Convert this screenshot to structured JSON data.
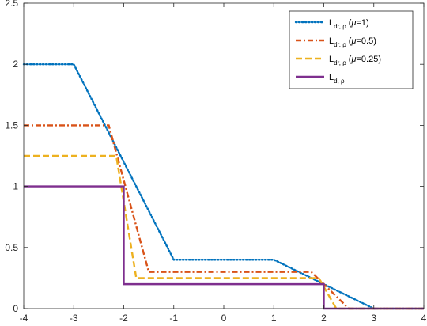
{
  "chart_data": {
    "type": "line",
    "title": "",
    "xlabel": "",
    "ylabel": "",
    "xlim": [
      -4,
      4
    ],
    "ylim": [
      0,
      2.5
    ],
    "grid": false,
    "legend_position": "top-right",
    "x_ticks": [
      "-4",
      "-3",
      "-2",
      "-1",
      "0",
      "1",
      "2",
      "3",
      "4"
    ],
    "y_ticks": [
      "0",
      "0.5",
      "1",
      "1.5",
      "2",
      "2.5"
    ],
    "series": [
      {
        "legend": {
          "main": "L",
          "sub": "dr, ρ",
          "param": "(μ=1)",
          "param_mu": "μ",
          "param_rest": "=1"
        },
        "color": "#0072BD",
        "style": "dotted",
        "x": [
          -4,
          -3,
          -1.0,
          1.0,
          3.0,
          4
        ],
        "y": [
          2,
          2,
          0.4,
          0.4,
          0,
          0
        ]
      },
      {
        "legend": {
          "main": "L",
          "sub": "dr, ρ",
          "param": "(μ=0.5)",
          "param_mu": "μ",
          "param_rest": "=0.5"
        },
        "color": "#D95319",
        "style": "dashdot",
        "x": [
          -4,
          -2.3,
          -1.5,
          1.75,
          2.5,
          4
        ],
        "y": [
          1.5,
          1.5,
          0.3,
          0.3,
          0,
          0
        ]
      },
      {
        "legend": {
          "main": "L",
          "sub": "dr, ρ",
          "param": "(μ=0.25)",
          "param_mu": "μ",
          "param_rest": "=0.25"
        },
        "color": "#EDB120",
        "style": "dashed",
        "x": [
          -4,
          -2.15,
          -1.75,
          1.9,
          2.25,
          4
        ],
        "y": [
          1.25,
          1.25,
          0.25,
          0.25,
          0,
          0
        ]
      },
      {
        "legend": {
          "main": "L",
          "sub": "d, ρ",
          "param": "",
          "param_mu": "",
          "param_rest": ""
        },
        "color": "#7E2F8E",
        "style": "solid",
        "x": [
          -4,
          -2,
          -2,
          2,
          2,
          4
        ],
        "y": [
          1,
          1,
          0.2,
          0.2,
          0,
          0
        ]
      }
    ]
  }
}
